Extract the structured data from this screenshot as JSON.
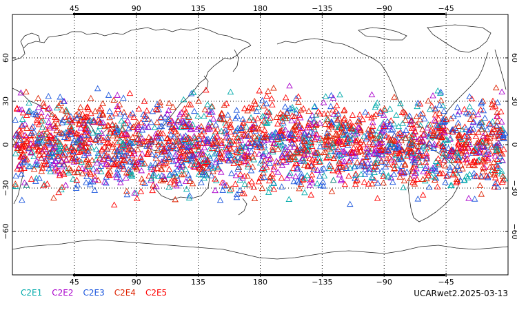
{
  "map": {
    "top_lon_labels": [
      "45",
      "90",
      "135",
      "180",
      "−135",
      "−90",
      "−45"
    ],
    "bottom_lon_labels": [
      "45",
      "90",
      "135",
      "180",
      "−135",
      "−90",
      "−45"
    ],
    "lat_labels": [
      "60",
      "30",
      "0",
      "−30",
      "−60"
    ],
    "lat_ticks": [
      60,
      30,
      0,
      -30,
      -60
    ],
    "lon_ticks_east": [
      45,
      90,
      135,
      180,
      225,
      270,
      315
    ],
    "lon_range": [
      0,
      360
    ],
    "lat_range": [
      -90,
      90
    ],
    "marker": "triangle-outline",
    "obs_lat_range": [
      -45,
      45
    ],
    "projection": "cylindrical-equidistant",
    "grid": "dotted"
  },
  "legend": {
    "items": [
      {
        "label": "C2E1",
        "color": "#00aaaa"
      },
      {
        "label": "C2E2",
        "color": "#aa00cc"
      },
      {
        "label": "C2E3",
        "color": "#1a55dd"
      },
      {
        "label": "C2E4",
        "color": "#dd2200"
      },
      {
        "label": "C2E5",
        "color": "#ff0000"
      }
    ]
  },
  "footer": {
    "dataset": "UCARwet2.2025-03-13"
  }
}
